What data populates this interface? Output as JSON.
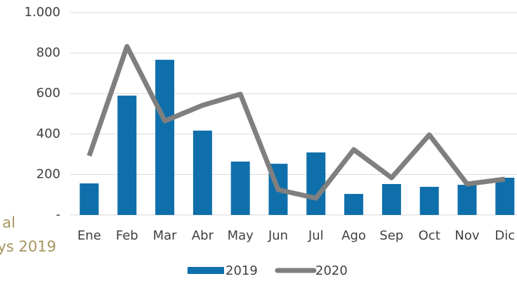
{
  "chart_data": {
    "type": "bar_line",
    "annotations": [
      "al",
      "ys 2019"
    ],
    "categories": [
      "Ene",
      "Feb",
      "Mar",
      "Abr",
      "May",
      "Jun",
      "Jul",
      "Ago",
      "Sep",
      "Oct",
      "Nov",
      "Dic"
    ],
    "series": [
      {
        "name": "2019",
        "type": "bar",
        "color": "#0f6fab",
        "values": [
          156,
          590,
          767,
          417,
          264,
          253,
          309,
          104,
          153,
          139,
          149,
          184
        ]
      },
      {
        "name": "2020",
        "type": "line",
        "color": "#7f7f7f",
        "values": [
          292,
          833,
          465,
          542,
          597,
          125,
          83,
          323,
          184,
          396,
          153,
          177
        ]
      }
    ],
    "ylim": [
      0,
      1000
    ],
    "yticks": [
      {
        "value": 0,
        "label": "-"
      },
      200,
      400,
      600,
      800,
      {
        "value": 1000,
        "label": "1.000"
      }
    ],
    "grid": true,
    "legend": "bottom"
  }
}
